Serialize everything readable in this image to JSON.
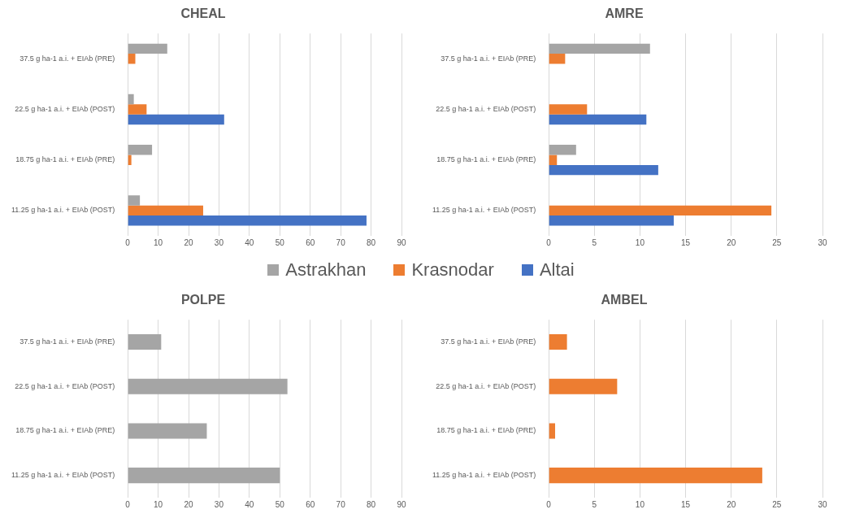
{
  "chart_data": [
    {
      "type": "bar",
      "title": "CHEAL",
      "orientation": "horizontal",
      "categories": [
        "37.5 g ha-1 a.i. + EIAb (PRE)",
        "22.5 g ha-1 a.i. + EIAb (POST)",
        "18.75 g ha-1 a.i. + EIAb (PRE)",
        "11.25 g ha-1 a.i. + EIAb (POST)"
      ],
      "series": [
        {
          "name": "Astrakhan",
          "color": "#a5a5a5",
          "values": [
            13,
            2,
            8,
            4
          ]
        },
        {
          "name": "Krasnodar",
          "color": "#ed7d31",
          "values": [
            2.5,
            6.2,
            1.2,
            24.8
          ]
        },
        {
          "name": "Altai",
          "color": "#4472c4",
          "values": [
            null,
            31.7,
            null,
            78.5
          ]
        }
      ],
      "xlim": [
        0,
        90
      ],
      "xticks": [
        0,
        10,
        20,
        30,
        40,
        50,
        60,
        70,
        80,
        90
      ],
      "grid": "x",
      "legend": "bottom"
    },
    {
      "type": "bar",
      "title": "AMRE",
      "orientation": "horizontal",
      "categories": [
        "37.5 g ha-1 a.i. + EIAb (PRE)",
        "22.5 g ha-1 a.i. + EIAb (POST)",
        "18.75 g ha-1 a.i. + EIAb (PRE)",
        "11.25 g ha-1 a.i. + EIAb (POST)"
      ],
      "series": [
        {
          "color": "#a5a5a5",
          "values": [
            11.1,
            null,
            3,
            null
          ]
        },
        {
          "color": "#ed7d31",
          "values": [
            1.8,
            4.2,
            0.9,
            24.4
          ]
        },
        {
          "color": "#4472c4",
          "values": [
            null,
            10.7,
            12,
            13.7
          ]
        }
      ],
      "xlim": [
        0,
        30
      ],
      "xticks": [
        0,
        5,
        10,
        15,
        20,
        25,
        30
      ],
      "grid": "x"
    },
    {
      "type": "bar",
      "title": "POLPE",
      "orientation": "horizontal",
      "categories": [
        "37.5 g ha-1 a.i. + EIAb (PRE)",
        "22.5 g ha-1 a.i. + EIAb (POST)",
        "18.75 g ha-1 a.i. + EIAb (PRE)",
        "11.25 g ha-1 a.i. + EIAb (POST)"
      ],
      "series": [
        {
          "color": "#a5a5a5",
          "values": [
            11,
            52.5,
            26,
            50
          ]
        }
      ],
      "xlim": [
        0,
        90
      ],
      "xticks": [
        0,
        10,
        20,
        30,
        40,
        50,
        60,
        70,
        80,
        90
      ],
      "grid": "x"
    },
    {
      "type": "bar",
      "title": "AMBEL",
      "orientation": "horizontal",
      "categories": [
        "37.5 g ha-1 a.i. + EIAb (PRE)",
        "22.5 g ha-1 a.i. + EIAb (POST)",
        "18.75 g ha-1 a.i. + EIAb (PRE)",
        "11.25 g ha-1 a.i. + EIAb (POST)"
      ],
      "series": [
        {
          "color": "#ed7d31",
          "values": [
            2,
            7.5,
            0.7,
            23.4
          ]
        }
      ],
      "xlim": [
        0,
        30
      ],
      "xticks": [
        0,
        5,
        10,
        15,
        20,
        25,
        30
      ],
      "grid": "x"
    }
  ]
}
